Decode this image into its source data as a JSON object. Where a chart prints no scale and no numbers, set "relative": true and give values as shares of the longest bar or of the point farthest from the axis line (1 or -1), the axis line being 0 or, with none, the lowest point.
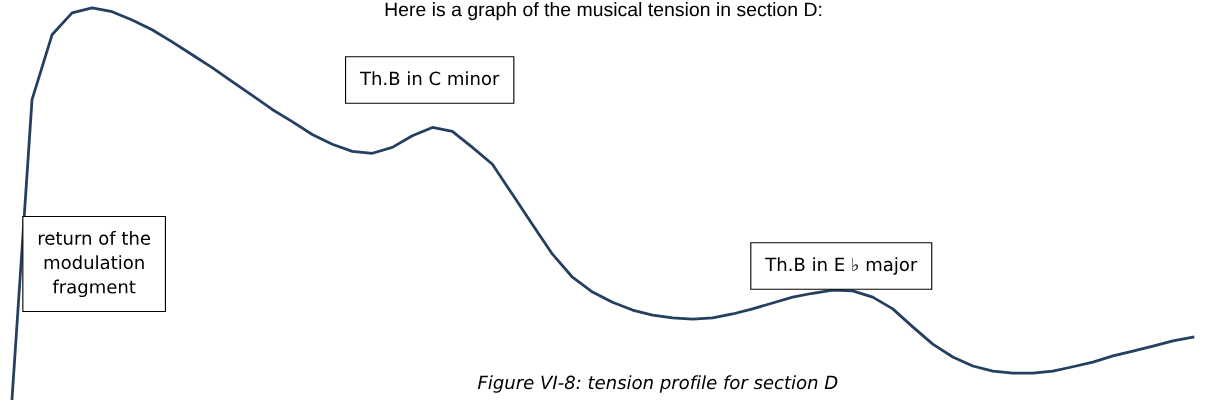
{
  "chart_data": {
    "type": "line",
    "title": "Here is a graph of the musical tension in section D:",
    "relative": true,
    "color": "#243f60",
    "categories": [
      null,
      null,
      null,
      null,
      null,
      null,
      null,
      null,
      null,
      null,
      null,
      null,
      null,
      null,
      null,
      null,
      null,
      null,
      null,
      null,
      null,
      null,
      null,
      null,
      null,
      null,
      null,
      null,
      null,
      null,
      null,
      null,
      null,
      null,
      null,
      null,
      null,
      null,
      null,
      null,
      null,
      null,
      null,
      null,
      null,
      null,
      null,
      null,
      null,
      null,
      null,
      null,
      null,
      null,
      null,
      null,
      null,
      null,
      null,
      null
    ],
    "values": [
      0,
      0.765,
      0.931,
      0.987,
      1.0,
      0.99,
      0.969,
      0.944,
      0.913,
      0.88,
      0.847,
      0.811,
      0.776,
      0.74,
      0.709,
      0.676,
      0.651,
      0.633,
      0.628,
      0.643,
      0.673,
      0.694,
      0.684,
      0.643,
      0.6,
      0.523,
      0.446,
      0.37,
      0.311,
      0.273,
      0.247,
      0.227,
      0.214,
      0.207,
      0.204,
      0.207,
      0.217,
      0.23,
      0.245,
      0.26,
      0.27,
      0.278,
      0.276,
      0.26,
      0.23,
      0.184,
      0.14,
      0.107,
      0.084,
      0.071,
      0.066,
      0.066,
      0.071,
      0.082,
      0.094,
      0.11,
      0.122,
      0.135,
      0.148,
      0.158
    ],
    "annotations": [
      "return of the\nmodulation\nfragment",
      "Th.B in C minor",
      "Th.B in E ♭ major",
      "Figure VI-8: tension profile for section D"
    ],
    "legend": false,
    "marker": "none",
    "line_style": "solid"
  }
}
